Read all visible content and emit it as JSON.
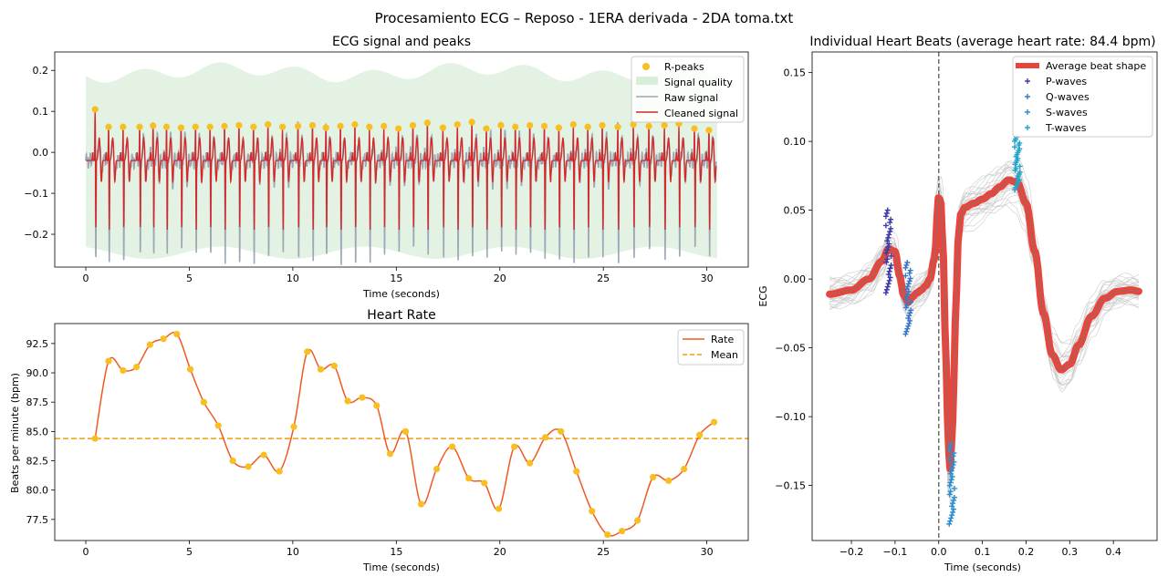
{
  "suptitle": "Procesamiento ECG – Reposo - 1ERA derivada - 2DA toma.txt",
  "chart_data": [
    {
      "type": "line",
      "title": "ECG signal and peaks",
      "xlabel": "Time (seconds)",
      "ylabel": "",
      "xlim": [
        -1.5,
        32.0
      ],
      "ylim": [
        -0.28,
        0.245
      ],
      "xticks": [
        0,
        5,
        10,
        15,
        20,
        25,
        30
      ],
      "yticks": [
        -0.2,
        -0.1,
        0.0,
        0.1,
        0.2
      ],
      "legend": {
        "position": "top-right",
        "entries": [
          "R-peaks",
          "Signal quality",
          "Raw signal",
          "Cleaned signal"
        ]
      },
      "colors": {
        "rpeak": "#f7bf21",
        "quality": "#d9eed9",
        "raw": "#9ba8b5",
        "clean": "#d62728"
      },
      "series": [
        {
          "name": "R-peaks",
          "x": [
            0.45,
            1.1,
            1.8,
            2.6,
            3.25,
            3.9,
            4.6,
            5.3,
            6.0,
            6.7,
            7.4,
            8.1,
            8.8,
            9.5,
            10.25,
            10.95,
            11.6,
            12.3,
            13.0,
            13.7,
            14.4,
            15.1,
            15.8,
            16.5,
            17.25,
            17.95,
            18.65,
            19.35,
            20.05,
            20.75,
            21.45,
            22.15,
            22.85,
            23.55,
            24.25,
            24.95,
            25.7,
            26.45,
            27.2,
            27.95,
            28.65,
            29.4,
            30.1
          ],
          "y": [
            0.105,
            0.062,
            0.062,
            0.062,
            0.065,
            0.062,
            0.06,
            0.062,
            0.062,
            0.064,
            0.066,
            0.062,
            0.068,
            0.062,
            0.064,
            0.066,
            0.06,
            0.064,
            0.068,
            0.062,
            0.064,
            0.058,
            0.066,
            0.072,
            0.06,
            0.068,
            0.074,
            0.058,
            0.066,
            0.062,
            0.066,
            0.064,
            0.06,
            0.068,
            0.062,
            0.066,
            0.062,
            0.068,
            0.064,
            0.066,
            0.07,
            0.058,
            0.054
          ]
        },
        {
          "name": "Cleaned signal",
          "r_peak_height": 0.065,
          "s_trough": -0.17
        },
        {
          "name": "Raw signal",
          "s_trough": -0.24
        },
        {
          "name": "Signal quality",
          "x_range": [
            0,
            30.5
          ],
          "band": [
            -0.26,
            0.22
          ]
        }
      ]
    },
    {
      "type": "line",
      "title": "Heart Rate",
      "xlabel": "Time (seconds)",
      "ylabel": "Beats per minute (bpm)",
      "xlim": [
        -1.5,
        32.0
      ],
      "ylim": [
        75.7,
        94.2
      ],
      "xticks": [
        0,
        5,
        10,
        15,
        20,
        25,
        30
      ],
      "yticks": [
        77.5,
        80.0,
        82.5,
        85.0,
        87.5,
        90.0,
        92.5
      ],
      "legend": {
        "position": "top-right",
        "entries": [
          "Rate",
          "Mean"
        ]
      },
      "colors": {
        "rate": "#ee5a24",
        "points": "#f7bf21",
        "mean": "#f29a12"
      },
      "mean": 84.4,
      "series": [
        {
          "name": "Rate",
          "x": [
            0.45,
            1.1,
            1.8,
            2.45,
            3.1,
            3.75,
            4.4,
            5.05,
            5.7,
            6.4,
            7.1,
            7.85,
            8.6,
            9.35,
            10.05,
            10.7,
            11.35,
            12.0,
            12.65,
            13.35,
            14.05,
            14.7,
            15.45,
            16.2,
            16.95,
            17.7,
            18.5,
            19.25,
            19.95,
            20.7,
            21.45,
            22.2,
            22.95,
            23.7,
            24.45,
            25.2,
            25.9,
            26.65,
            27.4,
            28.15,
            28.9,
            29.65,
            30.35
          ],
          "y": [
            84.4,
            91.0,
            90.2,
            90.5,
            92.4,
            92.9,
            93.3,
            90.3,
            87.5,
            85.5,
            82.5,
            82.0,
            83.0,
            81.6,
            85.4,
            91.8,
            90.3,
            90.6,
            87.6,
            87.9,
            87.2,
            83.1,
            85.0,
            78.8,
            81.8,
            83.7,
            81.0,
            80.6,
            78.4,
            83.7,
            82.3,
            84.5,
            85.0,
            81.6,
            78.2,
            76.2,
            76.5,
            77.4,
            81.1,
            80.8,
            81.8,
            84.7,
            85.8
          ]
        }
      ]
    },
    {
      "type": "line",
      "title": "Individual Heart Beats (average heart rate: 84.4 bpm)",
      "xlabel": "Time (seconds)",
      "ylabel": "ECG",
      "xlim": [
        -0.29,
        0.5
      ],
      "ylim": [
        -0.19,
        0.165
      ],
      "xticks": [
        -0.2,
        -0.1,
        0.0,
        0.1,
        0.2,
        0.3,
        0.4
      ],
      "yticks": [
        -0.15,
        -0.1,
        -0.05,
        0.0,
        0.05,
        0.1,
        0.15
      ],
      "legend": {
        "position": "top-right",
        "entries": [
          "Average beat shape",
          "P-waves",
          "Q-waves",
          "S-waves",
          "T-waves"
        ]
      },
      "colors": {
        "avg": "#e8453c",
        "core": "#777777",
        "beats": "#c8c8c8",
        "p": "#3d3da8",
        "q": "#3a78c8",
        "s": "#2b8fd0",
        "t": "#22a3c8",
        "vline": "#666666"
      },
      "series": [
        {
          "name": "Average beat shape",
          "x": [
            -0.25,
            -0.2,
            -0.16,
            -0.13,
            -0.115,
            -0.1,
            -0.09,
            -0.08,
            -0.07,
            -0.06,
            -0.05,
            -0.04,
            -0.03,
            -0.02,
            -0.01,
            0.0,
            0.005,
            0.01,
            0.015,
            0.02,
            0.025,
            0.03,
            0.035,
            0.04,
            0.045,
            0.05,
            0.06,
            0.08,
            0.1,
            0.12,
            0.14,
            0.16,
            0.18,
            0.2,
            0.22,
            0.24,
            0.26,
            0.28,
            0.3,
            0.32,
            0.35,
            0.38,
            0.41,
            0.44,
            0.46
          ],
          "y": [
            -0.011,
            -0.008,
            0.0,
            0.013,
            0.022,
            0.02,
            0.003,
            -0.012,
            -0.017,
            -0.013,
            -0.01,
            -0.008,
            -0.005,
            0.0,
            0.015,
            0.06,
            0.055,
            0.02,
            -0.04,
            -0.1,
            -0.14,
            -0.12,
            -0.07,
            -0.01,
            0.03,
            0.047,
            0.052,
            0.055,
            0.058,
            0.062,
            0.067,
            0.072,
            0.07,
            0.055,
            0.02,
            -0.025,
            -0.055,
            -0.066,
            -0.062,
            -0.048,
            -0.027,
            -0.014,
            -0.009,
            -0.008,
            -0.009
          ]
        },
        {
          "name": "P-waves",
          "x_center": -0.115,
          "y_range": [
            -0.01,
            0.05
          ]
        },
        {
          "name": "Q-waves",
          "x_center": -0.07,
          "y_range": [
            -0.04,
            0.012
          ]
        },
        {
          "name": "S-waves",
          "x_center": 0.03,
          "y_range": [
            -0.178,
            -0.12
          ]
        },
        {
          "name": "T-waves",
          "x_center": 0.18,
          "y_range": [
            0.065,
            0.103
          ]
        }
      ]
    }
  ]
}
